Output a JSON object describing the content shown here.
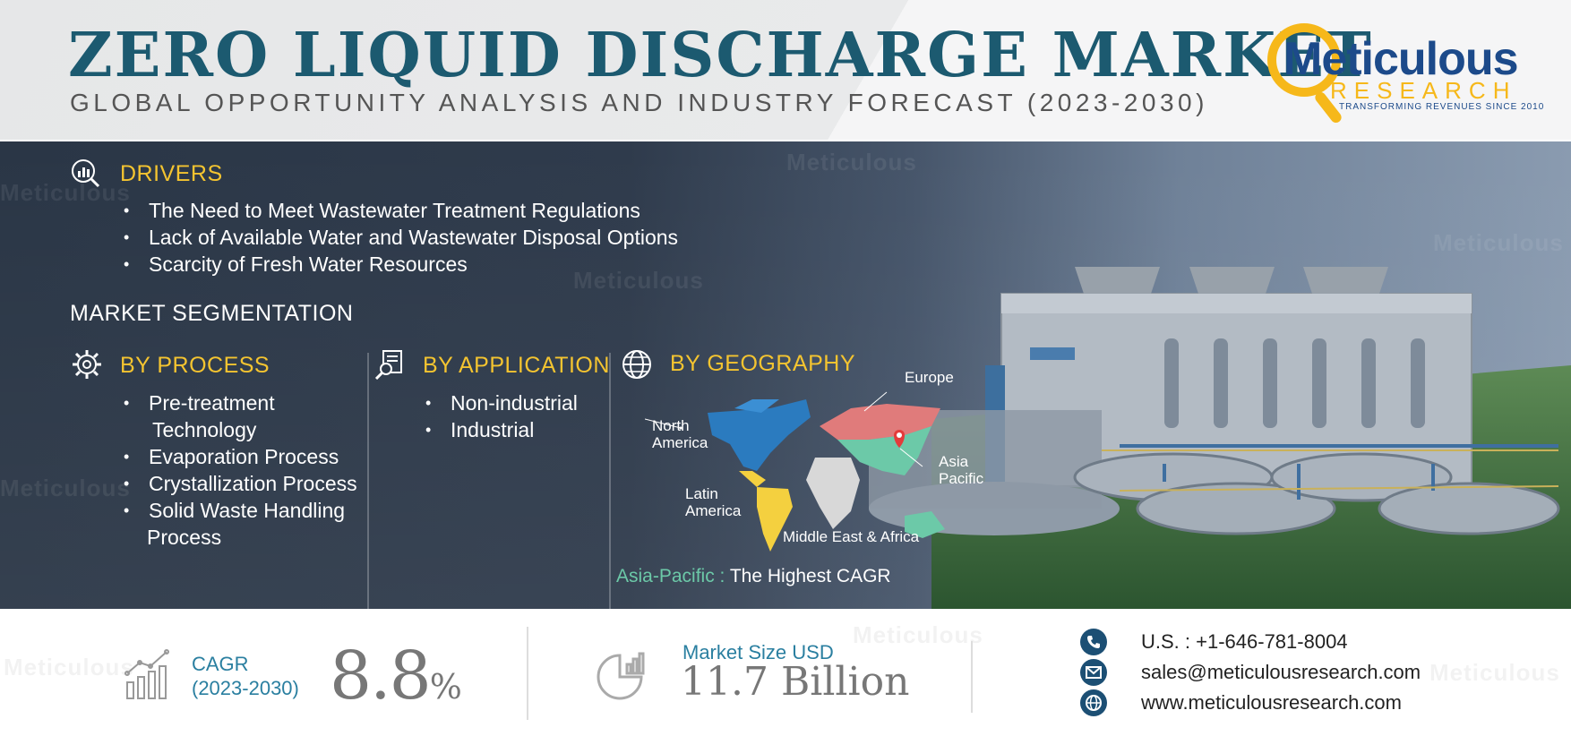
{
  "header": {
    "title": "ZERO LIQUID DISCHARGE MARKET",
    "subtitle": "GLOBAL OPPORTUNITY ANALYSIS AND INDUSTRY FORECAST (2023-2030)"
  },
  "logo": {
    "name": "Meticulous",
    "research": "RESEARCH",
    "tagline": "TRANSFORMING REVENUES SINCE 2010",
    "colors": {
      "blue": "#1c4a8a",
      "yellow": "#f6b81a"
    }
  },
  "drivers": {
    "heading": "DRIVERS",
    "icon": "magnifier-chart-icon",
    "items": [
      "The Need to Meet Wastewater Treatment Regulations",
      "Lack of Available Water and Wastewater Disposal Options",
      "Scarcity of Fresh Water Resources"
    ]
  },
  "segmentation": {
    "heading": "MARKET SEGMENTATION",
    "by_process": {
      "heading": "BY PROCESS",
      "icon": "gear-icon",
      "items": [
        "Pre-treatment",
        "Technology",
        "Evaporation Process",
        "Crystallization Process",
        "Solid Waste Handling",
        "Process"
      ]
    },
    "by_application": {
      "heading": "BY APPLICATION",
      "icon": "document-search-icon",
      "items": [
        "Non-industrial",
        "Industrial"
      ]
    },
    "by_geography": {
      "heading": "BY GEOGRAPHY",
      "icon": "globe-icon",
      "regions": {
        "north_america": [
          "North",
          "America"
        ],
        "europe": "Europe",
        "asia_pacific": [
          "Asia",
          "Pacific"
        ],
        "latin_america": [
          "Latin",
          "America"
        ],
        "mea": "Middle East & Africa"
      },
      "region_colors": {
        "north_america": "#2b7bbf",
        "europe": "#e07b7b",
        "asia_pacific": "#6cc9a8",
        "latin_america": "#f4d03f",
        "mea": "#d8d8d8"
      },
      "highlight_region": "Asia-Pacific :",
      "highlight_text": "The Highest CAGR"
    }
  },
  "stats": {
    "cagr_label": [
      "CAGR",
      "(2023-2030)"
    ],
    "cagr_value": "8.8",
    "cagr_unit": "%",
    "market_size_label": "Market Size USD",
    "market_size_value": "11.7 Billion"
  },
  "contact": {
    "phone": "U.S. : +1-646-781-8004",
    "email": "sales@meticulousresearch.com",
    "website": "www.meticulousresearch.com"
  },
  "watermark": "Meticulous"
}
